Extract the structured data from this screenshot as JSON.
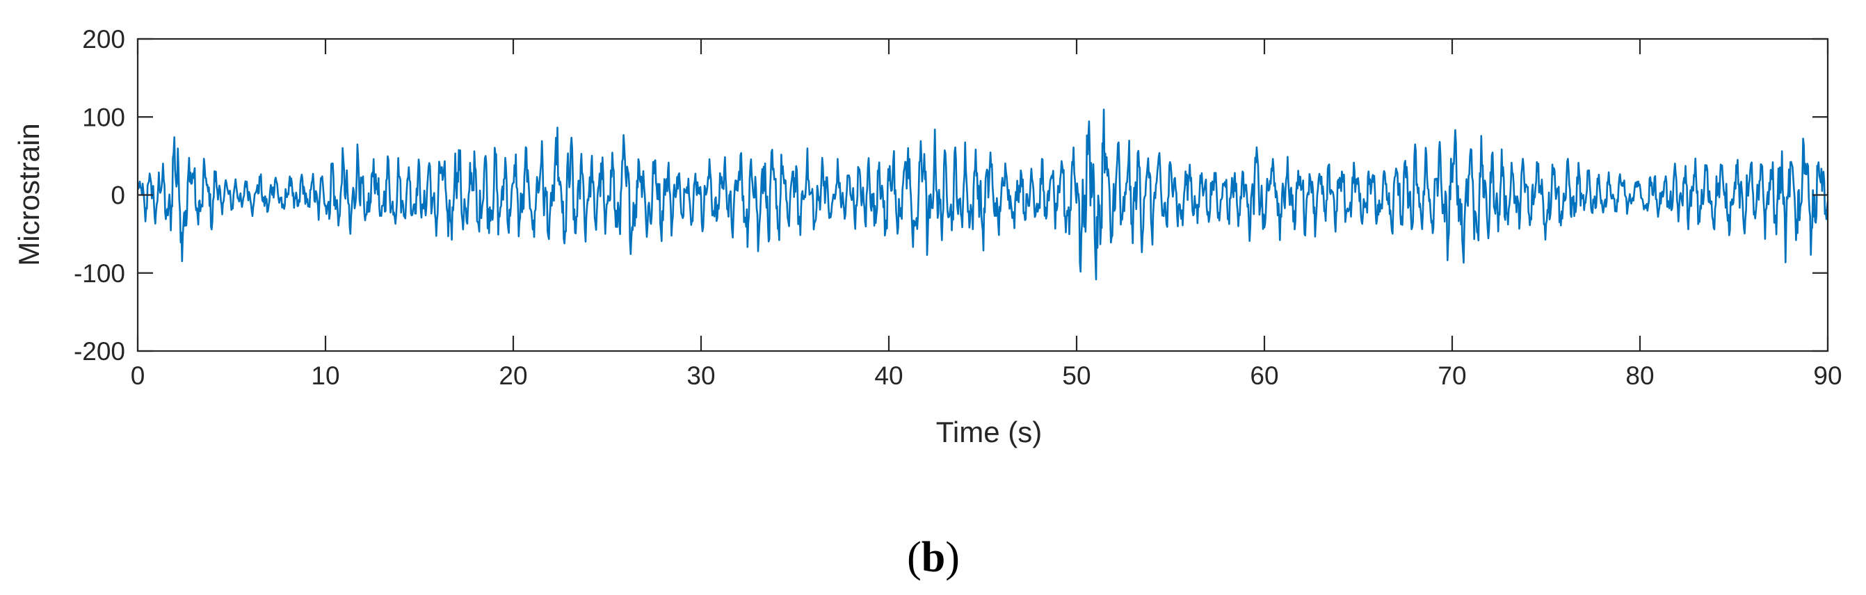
{
  "chart_data": {
    "type": "line",
    "xlabel": "Time (s)",
    "ylabel": "Microstrain",
    "xlim": [
      0,
      90
    ],
    "ylim": [
      -200,
      200
    ],
    "xticks": [
      0,
      10,
      20,
      30,
      40,
      50,
      60,
      70,
      80,
      90
    ],
    "yticks": [
      -200,
      -100,
      0,
      100,
      200
    ],
    "grid": false,
    "series": [
      {
        "color": "#0072BD",
        "envelope": [
          [
            0,
            20
          ],
          [
            0.5,
            40
          ],
          [
            1.5,
            45
          ],
          [
            2.0,
            88
          ],
          [
            2.3,
            85
          ],
          [
            3,
            50
          ],
          [
            4,
            45
          ],
          [
            5,
            22
          ],
          [
            7,
            28
          ],
          [
            9,
            30
          ],
          [
            10.5,
            50
          ],
          [
            11.5,
            62
          ],
          [
            13,
            50
          ],
          [
            15,
            40
          ],
          [
            16.5,
            68
          ],
          [
            18,
            62
          ],
          [
            20,
            55
          ],
          [
            22,
            68
          ],
          [
            22.7,
            90
          ],
          [
            24,
            55
          ],
          [
            26,
            72
          ],
          [
            28,
            50
          ],
          [
            30,
            40
          ],
          [
            32,
            55
          ],
          [
            32.7,
            82
          ],
          [
            34,
            60
          ],
          [
            36,
            50
          ],
          [
            38,
            35
          ],
          [
            40,
            70
          ],
          [
            41.8,
            92
          ],
          [
            43,
            55
          ],
          [
            45,
            65
          ],
          [
            47,
            40
          ],
          [
            49,
            45
          ],
          [
            50.3,
            95
          ],
          [
            51.4,
            120
          ],
          [
            52,
            80
          ],
          [
            54,
            60
          ],
          [
            56,
            45
          ],
          [
            58,
            35
          ],
          [
            59.5,
            60
          ],
          [
            61,
            50
          ],
          [
            63,
            45
          ],
          [
            65,
            40
          ],
          [
            67,
            55
          ],
          [
            68.5,
            65
          ],
          [
            70,
            82
          ],
          [
            70.6,
            88
          ],
          [
            72,
            60
          ],
          [
            73.5,
            45
          ],
          [
            75,
            55
          ],
          [
            77,
            35
          ],
          [
            79,
            28
          ],
          [
            81,
            30
          ],
          [
            83,
            45
          ],
          [
            85,
            45
          ],
          [
            87,
            55
          ],
          [
            88.5,
            92
          ],
          [
            89.2,
            75
          ],
          [
            90,
            45
          ]
        ]
      }
    ]
  },
  "panel_label": {
    "paren_open": "(",
    "letter": "b",
    "paren_close": ")"
  }
}
